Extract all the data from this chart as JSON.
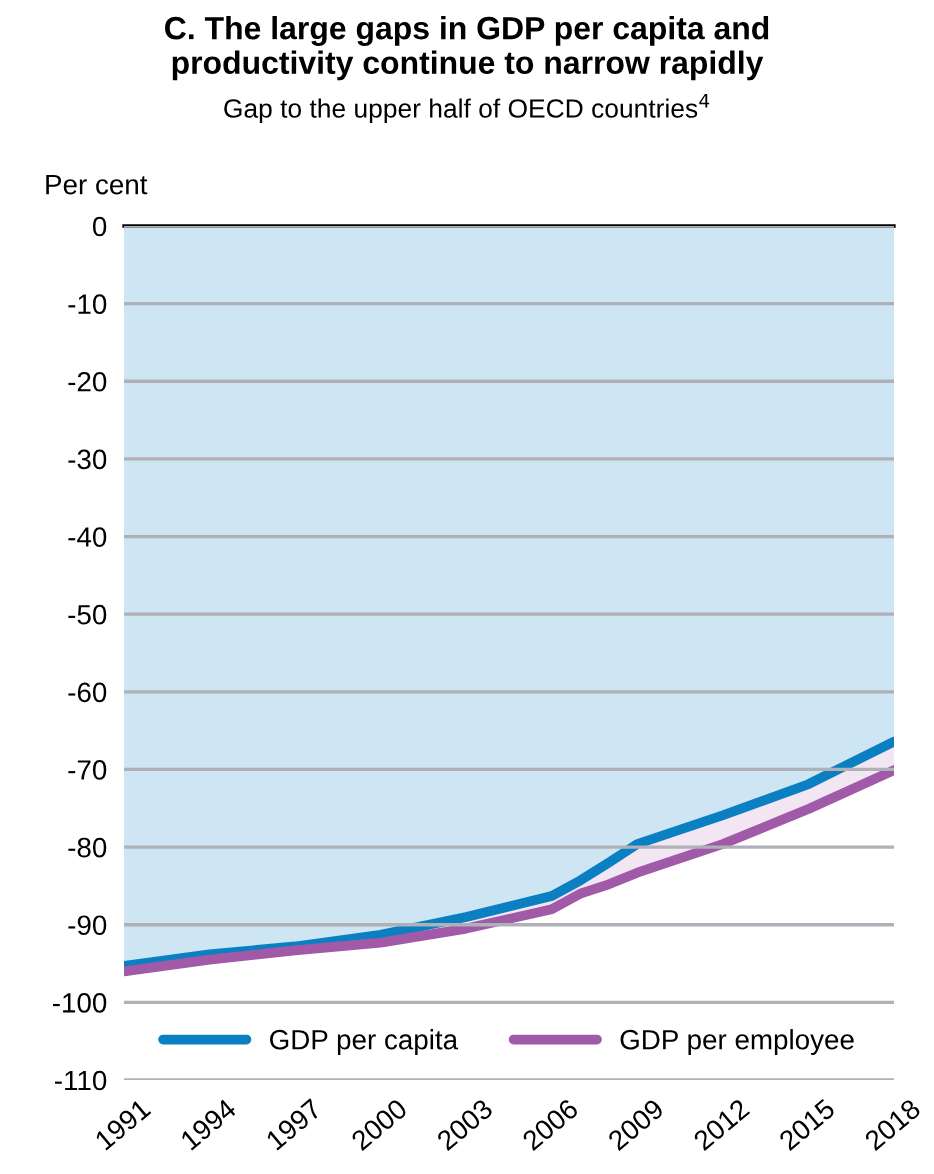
{
  "chart_data": {
    "type": "area",
    "title": "C. The large gaps in GDP per capita and\nproductivity continue to narrow rapidly",
    "subtitle": "Gap to the upper half of OECD countries$^{4}$",
    "ylabel": "Per cent",
    "x": [
      1991,
      1994,
      1997,
      2000,
      2003,
      2006,
      2007,
      2008,
      2009,
      2012,
      2015,
      2018
    ],
    "series": [
      {
        "name": "GDP per capita",
        "color": "#0a7fc1",
        "values": [
          -95.3,
          -93.8,
          -92.8,
          -91.3,
          -89,
          -86.3,
          -84.3,
          -82,
          -79.6,
          -75.9,
          -71.9,
          -66.4
        ]
      },
      {
        "name": "GDP per employee",
        "color": "#a05aa8",
        "values": [
          -96,
          -94.5,
          -93.3,
          -92.3,
          -90.5,
          -88,
          -86,
          -84.8,
          -83.3,
          -79.6,
          -75.1,
          -70.1
        ]
      }
    ],
    "xlim": [
      1991,
      2018
    ],
    "xticks": [
      1991,
      1994,
      1997,
      2000,
      2003,
      2006,
      2009,
      2012,
      2015,
      2018
    ],
    "ylim": [
      -110,
      0
    ],
    "yticks": [
      0,
      -10,
      -20,
      -30,
      -40,
      -50,
      -60,
      -70,
      -80,
      -90,
      -100,
      -110
    ],
    "grid": "y",
    "legend": "bottom"
  }
}
